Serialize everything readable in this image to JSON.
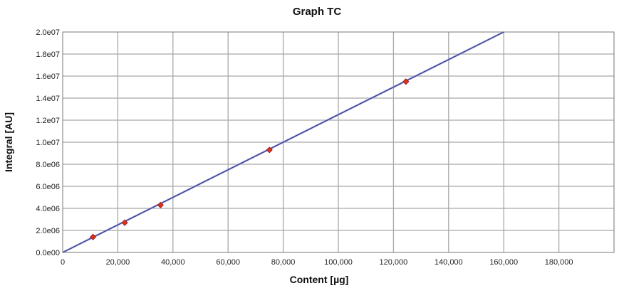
{
  "chart_data": {
    "type": "scatter",
    "title": "Graph TC",
    "xlabel": "Content [µg]",
    "ylabel": "Integral [AU]",
    "xlim": [
      0,
      200000
    ],
    "ylim": [
      0,
      20000000
    ],
    "x_ticks": [
      0,
      20000,
      40000,
      60000,
      80000,
      100000,
      120000,
      140000,
      160000,
      180000
    ],
    "x_tick_labels": [
      "0",
      "20,000",
      "40,000",
      "60,000",
      "80,000",
      "100,000",
      "120,000",
      "140,000",
      "160,000",
      "180,000"
    ],
    "y_ticks": [
      0,
      2000000,
      4000000,
      6000000,
      8000000,
      10000000,
      12000000,
      14000000,
      16000000,
      18000000,
      20000000
    ],
    "y_tick_labels": [
      "0.0e00",
      "2.0e06",
      "4.0e06",
      "6.0e06",
      "8.0e06",
      "1.0e07",
      "1.2e07",
      "1.4e07",
      "1.6e07",
      "1.8e07",
      "2.0e07"
    ],
    "grid": true,
    "series": [
      {
        "kind": "points",
        "color": "#e03020",
        "x": [
          11000,
          22500,
          35500,
          75000,
          124500
        ],
        "y": [
          1400000,
          2700000,
          4300000,
          9300000,
          15500000
        ]
      },
      {
        "kind": "fit-line",
        "color": "#9a9ec8",
        "x": [
          0,
          160000
        ],
        "y": [
          0,
          20000000
        ]
      },
      {
        "kind": "fit-line",
        "color": "#3a3aa0",
        "x": [
          0,
          160000
        ],
        "y": [
          0,
          20000000
        ]
      }
    ]
  }
}
